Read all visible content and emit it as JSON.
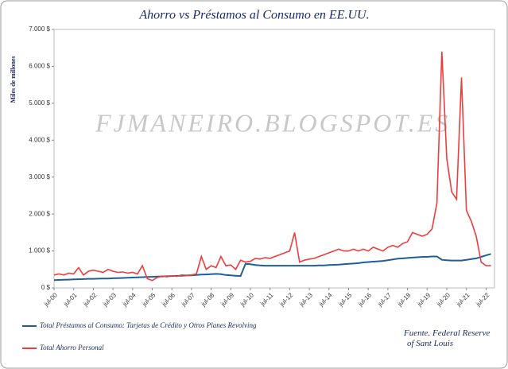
{
  "chart_data": {
    "type": "line",
    "title": "Ahorro vs Préstamos al Consumo en EE.UU.",
    "y_label": "Miles de millones",
    "watermark": "FJMANEIRO.BLOGSPOT.ES",
    "source": [
      "Fuente. Federal Reserve",
      "of Sant Louis"
    ],
    "categories": [
      "jul-00",
      null,
      null,
      null,
      "jul-01",
      null,
      null,
      null,
      "jul-02",
      null,
      null,
      null,
      "jul-03",
      null,
      null,
      null,
      "jul-04",
      null,
      null,
      null,
      "jul-05",
      null,
      null,
      null,
      "jul-06",
      null,
      null,
      null,
      "jul-07",
      null,
      null,
      null,
      "jul-08",
      null,
      null,
      null,
      "jul-09",
      null,
      null,
      null,
      "jul-10",
      null,
      null,
      null,
      "jul-11",
      null,
      null,
      null,
      "jul-12",
      null,
      null,
      null,
      "jul-13",
      null,
      null,
      null,
      "jul-14",
      null,
      null,
      null,
      "jul-15",
      null,
      null,
      null,
      "jul-16",
      null,
      null,
      null,
      "jul-17",
      null,
      null,
      null,
      "jul-18",
      null,
      null,
      null,
      "jul-19",
      null,
      null,
      null,
      "jul-20",
      null,
      null,
      null,
      "jul-21",
      null,
      null,
      null,
      "jul-22",
      null
    ],
    "series": [
      {
        "name": "Total Préstamos  al Consumo: Tarjetas de Crédito y Otros Planes Revolving",
        "color": "#1f5f99",
        "values": [
          210,
          215,
          220,
          225,
          230,
          235,
          240,
          245,
          245,
          250,
          255,
          255,
          260,
          265,
          270,
          275,
          280,
          285,
          290,
          295,
          300,
          305,
          310,
          315,
          320,
          325,
          330,
          335,
          340,
          350,
          360,
          365,
          370,
          380,
          370,
          350,
          340,
          330,
          320,
          650,
          640,
          620,
          610,
          600,
          600,
          600,
          600,
          600,
          600,
          600,
          600,
          600,
          600,
          600,
          610,
          610,
          620,
          625,
          630,
          640,
          650,
          660,
          670,
          690,
          700,
          710,
          720,
          730,
          750,
          770,
          790,
          800,
          810,
          820,
          830,
          840,
          840,
          850,
          850,
          760,
          750,
          740,
          740,
          740,
          760,
          780,
          800,
          840,
          880,
          920
        ]
      },
      {
        "name": "Total Ahorro Personal",
        "color": "#f03c3c",
        "values": [
          350,
          380,
          350,
          400,
          380,
          550,
          350,
          450,
          480,
          450,
          420,
          500,
          450,
          420,
          430,
          400,
          420,
          380,
          600,
          250,
          200,
          280,
          320,
          300,
          330,
          310,
          350,
          340,
          350,
          380,
          850,
          500,
          600,
          550,
          850,
          600,
          620,
          500,
          750,
          700,
          720,
          800,
          780,
          820,
          800,
          850,
          900,
          950,
          1000,
          1500,
          700,
          750,
          780,
          800,
          850,
          900,
          950,
          1000,
          1050,
          1000,
          1000,
          1050,
          1000,
          1050,
          1000,
          1100,
          1050,
          1000,
          1100,
          1150,
          1100,
          1200,
          1250,
          1500,
          1450,
          1400,
          1450,
          1600,
          2300,
          6400,
          3500,
          2600,
          2400,
          5700,
          2100,
          1800,
          1400,
          700,
          600,
          600
        ]
      }
    ],
    "ylim": [
      0,
      7000
    ],
    "yticks": [
      {
        "value": 0,
        "label": "0 $"
      },
      {
        "value": 1000,
        "label": "1.000 $"
      },
      {
        "value": 2000,
        "label": "2.000 $"
      },
      {
        "value": 3000,
        "label": "3.000 $"
      },
      {
        "value": 4000,
        "label": "4.000 $"
      },
      {
        "value": 5000,
        "label": "5.000 $"
      },
      {
        "value": 6000,
        "label": "6.000 $"
      },
      {
        "value": 7000,
        "label": "7.000 $"
      }
    ],
    "grid": false
  }
}
